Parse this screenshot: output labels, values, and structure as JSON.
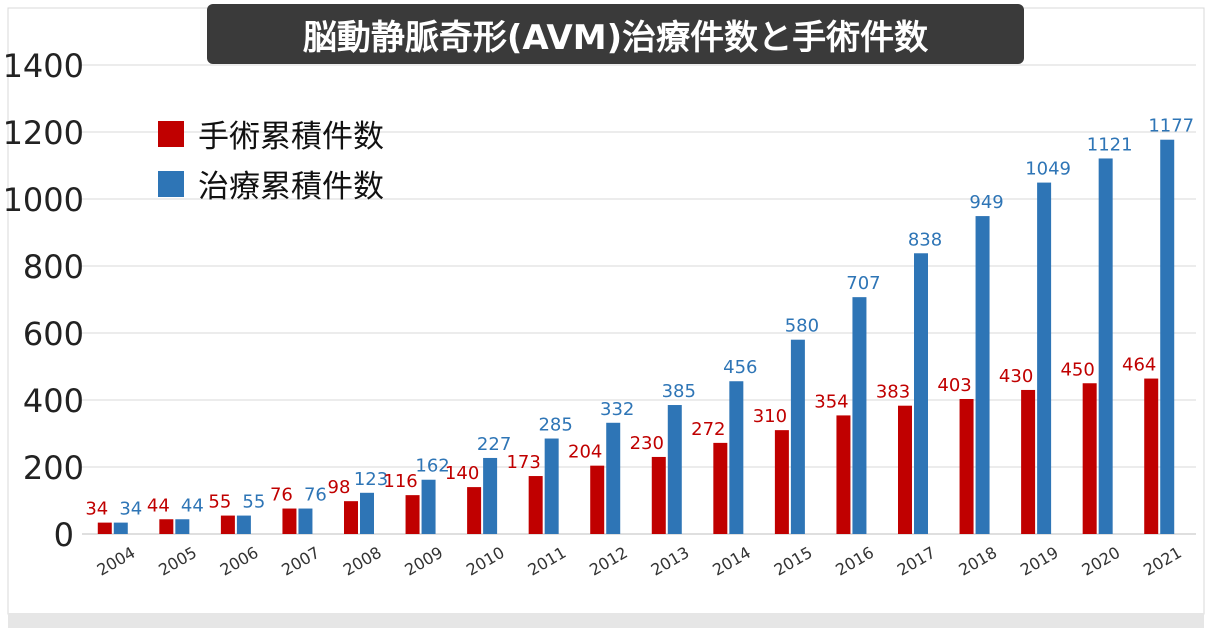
{
  "chart_data": {
    "type": "bar",
    "title": "脳動静脈奇形(AVM)治療件数と手術件数",
    "xlabel": "",
    "ylabel": "",
    "ylim": [
      0,
      1400
    ],
    "yticks": [
      "0",
      "200",
      "400",
      "600",
      "800",
      "1000",
      "1200",
      "1400"
    ],
    "grid": true,
    "legend_position": "top-left",
    "categories": [
      "2004",
      "2005",
      "2006",
      "2007",
      "2008",
      "2009",
      "2010",
      "2011",
      "2012",
      "2013",
      "2014",
      "2015",
      "2016",
      "2017",
      "2018",
      "2019",
      "2020",
      "2021"
    ],
    "series": [
      {
        "name": "手術累積件数",
        "color": "#c00000",
        "values": [
          34,
          44,
          55,
          76,
          98,
          116,
          140,
          173,
          204,
          230,
          272,
          310,
          354,
          383,
          403,
          430,
          450,
          464
        ]
      },
      {
        "name": "治療累積件数",
        "color": "#2e75b6",
        "values": [
          34,
          44,
          55,
          76,
          123,
          162,
          227,
          285,
          332,
          385,
          456,
          580,
          707,
          838,
          949,
          1049,
          1121,
          1177
        ]
      }
    ]
  }
}
